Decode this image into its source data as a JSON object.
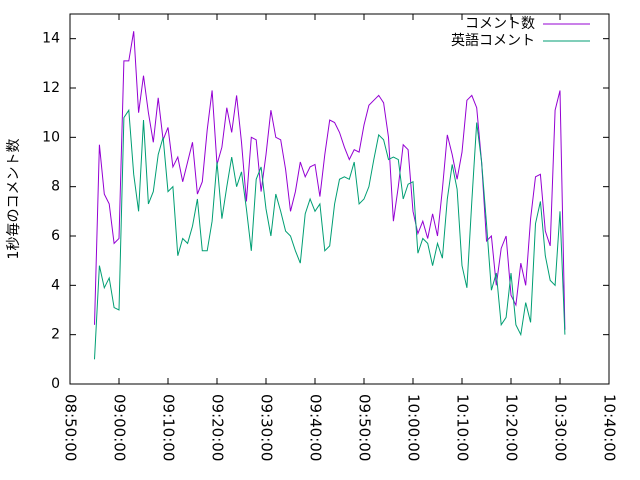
{
  "chart_data": {
    "type": "line",
    "ylabel": "1秒毎のコメント数",
    "x": [
      "08:55:00",
      "08:56:00",
      "08:57:00",
      "08:58:00",
      "08:59:00",
      "09:00:00",
      "09:01:00",
      "09:02:00",
      "09:03:00",
      "09:04:00",
      "09:05:00",
      "09:06:00",
      "09:07:00",
      "09:08:00",
      "09:09:00",
      "09:10:00",
      "09:11:00",
      "09:12:00",
      "09:13:00",
      "09:14:00",
      "09:15:00",
      "09:16:00",
      "09:17:00",
      "09:18:00",
      "09:19:00",
      "09:20:00",
      "09:21:00",
      "09:22:00",
      "09:23:00",
      "09:24:00",
      "09:25:00",
      "09:26:00",
      "09:27:00",
      "09:28:00",
      "09:29:00",
      "09:30:00",
      "09:31:00",
      "09:32:00",
      "09:33:00",
      "09:34:00",
      "09:35:00",
      "09:36:00",
      "09:37:00",
      "09:38:00",
      "09:39:00",
      "09:40:00",
      "09:41:00",
      "09:42:00",
      "09:43:00",
      "09:44:00",
      "09:45:00",
      "09:46:00",
      "09:47:00",
      "09:48:00",
      "09:49:00",
      "09:50:00",
      "09:51:00",
      "09:52:00",
      "09:53:00",
      "09:54:00",
      "09:55:00",
      "09:56:00",
      "09:57:00",
      "09:58:00",
      "09:59:00",
      "10:00:00",
      "10:01:00",
      "10:02:00",
      "10:03:00",
      "10:04:00",
      "10:05:00",
      "10:06:00",
      "10:07:00",
      "10:08:00",
      "10:09:00",
      "10:10:00",
      "10:11:00",
      "10:12:00",
      "10:13:00",
      "10:14:00",
      "10:15:00",
      "10:16:00",
      "10:17:00",
      "10:18:00",
      "10:19:00",
      "10:20:00",
      "10:21:00",
      "10:22:00",
      "10:23:00",
      "10:24:00",
      "10:25:00",
      "10:26:00",
      "10:27:00",
      "10:28:00",
      "10:29:00",
      "10:30:00",
      "10:31:00"
    ],
    "series": [
      {
        "name": "コメント数",
        "color": "#9400d3",
        "values": [
          2.4,
          9.7,
          7.7,
          7.3,
          5.7,
          5.9,
          13.1,
          13.1,
          14.3,
          11.0,
          12.5,
          11.0,
          9.8,
          11.6,
          9.9,
          10.4,
          8.8,
          9.2,
          8.2,
          9.0,
          9.8,
          7.7,
          8.2,
          10.3,
          11.9,
          8.9,
          9.6,
          11.2,
          10.2,
          11.7,
          9.8,
          7.4,
          10.0,
          9.9,
          7.8,
          9.3,
          11.1,
          10.0,
          9.9,
          8.7,
          7.0,
          7.8,
          9.0,
          8.4,
          8.8,
          8.9,
          7.6,
          9.3,
          10.7,
          10.6,
          10.2,
          9.6,
          9.1,
          9.5,
          9.4,
          10.5,
          11.3,
          11.5,
          11.7,
          11.4,
          10.0,
          6.6,
          8.0,
          9.7,
          9.5,
          7.0,
          6.1,
          6.6,
          5.9,
          6.9,
          6.0,
          7.9,
          10.1,
          9.3,
          8.3,
          9.4,
          11.5,
          11.7,
          11.2,
          9.0,
          5.8,
          6.0,
          4.0,
          5.5,
          6.0,
          3.6,
          3.2,
          4.9,
          4.0,
          6.7,
          8.4,
          8.5,
          6.2,
          5.6,
          11.1,
          11.9,
          2.2
        ]
      },
      {
        "name": "英語コメント",
        "color": "#009e73",
        "values": [
          1.0,
          4.8,
          3.9,
          4.3,
          3.1,
          3.0,
          10.8,
          11.1,
          8.5,
          7.0,
          10.7,
          7.3,
          7.8,
          9.3,
          10.0,
          7.8,
          8.0,
          5.2,
          5.9,
          5.7,
          6.4,
          7.5,
          5.4,
          5.4,
          6.6,
          9.0,
          6.7,
          8.0,
          9.2,
          8.0,
          8.6,
          7.1,
          5.4,
          8.3,
          8.8,
          7.1,
          6.0,
          7.7,
          7.0,
          6.2,
          6.0,
          5.4,
          4.9,
          6.9,
          7.5,
          7.0,
          7.3,
          5.4,
          5.6,
          7.3,
          8.3,
          8.4,
          8.3,
          9.0,
          7.3,
          7.5,
          8.0,
          9.1,
          10.1,
          9.9,
          9.1,
          9.2,
          9.1,
          7.5,
          8.1,
          8.2,
          5.3,
          5.9,
          5.7,
          4.8,
          5.7,
          5.1,
          7.5,
          8.9,
          7.9,
          4.8,
          3.9,
          7.4,
          10.6,
          9.0,
          6.5,
          3.8,
          4.5,
          2.4,
          2.7,
          4.5,
          2.4,
          2.0,
          3.3,
          2.5,
          6.5,
          7.4,
          5.2,
          4.2,
          4.0,
          7.0,
          2.0
        ]
      }
    ],
    "xlim": [
      "08:50:00",
      "10:40:00"
    ],
    "xticks": [
      "08:50:00",
      "09:00:00",
      "09:10:00",
      "09:20:00",
      "09:30:00",
      "09:40:00",
      "09:50:00",
      "10:00:00",
      "10:10:00",
      "10:20:00",
      "10:30:00",
      "10:40:00"
    ],
    "ylim": [
      0,
      15
    ],
    "yticks": [
      0,
      2,
      4,
      6,
      8,
      10,
      12,
      14
    ],
    "grid": false,
    "legend": "top-right"
  }
}
